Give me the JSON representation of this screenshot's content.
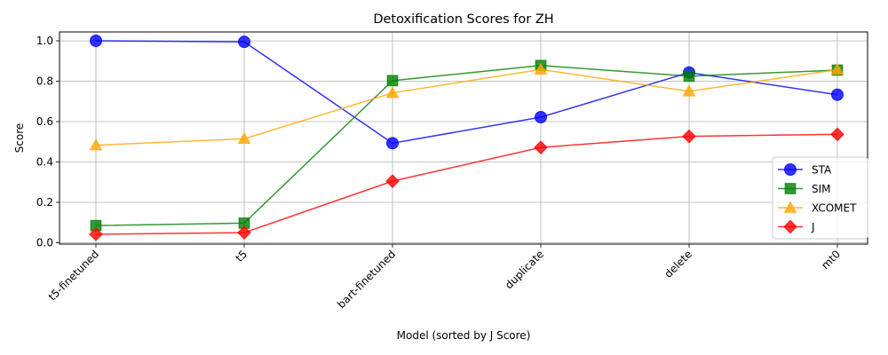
{
  "chart_data": {
    "type": "line",
    "title": "Detoxification Scores for ZH",
    "xlabel": "Model (sorted by J Score)",
    "ylabel": "Score",
    "categories": [
      "t5-finetuned",
      "t5",
      "bart-finetuned",
      "duplicate",
      "delete",
      "mt0"
    ],
    "ylim": [
      0,
      1.05
    ],
    "yticks": [
      "0.0",
      "0.2",
      "0.4",
      "0.6",
      "0.8",
      "1.0"
    ],
    "ytick_values": [
      0,
      0.2,
      0.4,
      0.6,
      0.8,
      1.0
    ],
    "grid": true,
    "legend_position": "lower-right",
    "series": [
      {
        "name": "STA",
        "color": "#0000ff",
        "marker": "circle",
        "values": [
          1.0,
          0.995,
          0.493,
          0.622,
          0.843,
          0.733
        ]
      },
      {
        "name": "SIM",
        "color": "#008000",
        "marker": "square",
        "values": [
          0.085,
          0.097,
          0.803,
          0.878,
          0.825,
          0.855
        ]
      },
      {
        "name": "XCOMET",
        "color": "#ffa500",
        "marker": "triangle",
        "values": [
          0.483,
          0.515,
          0.742,
          0.858,
          0.75,
          0.857
        ]
      },
      {
        "name": "J",
        "color": "#ff0000",
        "marker": "diamond",
        "values": [
          0.042,
          0.05,
          0.305,
          0.472,
          0.527,
          0.537
        ]
      }
    ]
  }
}
